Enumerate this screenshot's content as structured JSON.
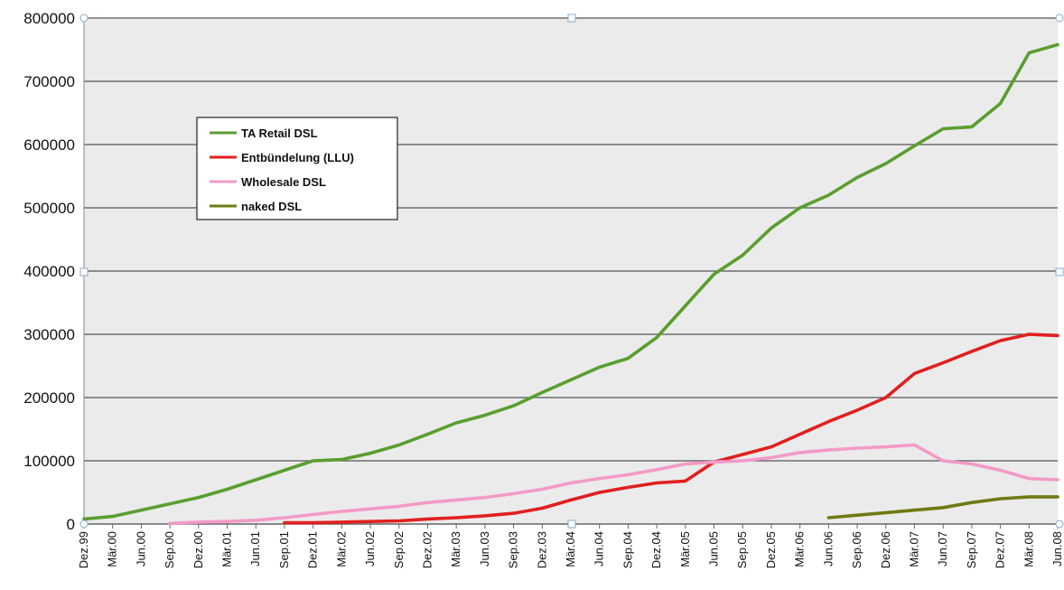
{
  "chart_data": {
    "type": "line",
    "title": "",
    "xlabel": "",
    "ylabel": "",
    "ylim": [
      0,
      800000
    ],
    "yticks": [
      0,
      100000,
      200000,
      300000,
      400000,
      500000,
      600000,
      700000,
      800000
    ],
    "grid": true,
    "legend_position": "top-left",
    "categories": [
      "Dez.99",
      "Mär.00",
      "Jun.00",
      "Sep.00",
      "Dez.00",
      "Mär.01",
      "Jun.01",
      "Sep.01",
      "Dez.01",
      "Mär.02",
      "Jun.02",
      "Sep.02",
      "Dez.02",
      "Mär.03",
      "Jun.03",
      "Sep.03",
      "Dez.03",
      "Mär.04",
      "Jun.04",
      "Sep.04",
      "Dez.04",
      "Mär.05",
      "Jun.05",
      "Sep.05",
      "Dez.05",
      "Mär.06",
      "Jun.06",
      "Sep.06",
      "Dez.06",
      "Mär.07",
      "Jun.07",
      "Sep.07",
      "Dez.07",
      "Mär.08",
      "Jun.08"
    ],
    "series": [
      {
        "name": "TA Retail DSL",
        "color": "#5a9e2f",
        "values": [
          8000,
          12000,
          22000,
          32000,
          42000,
          55000,
          70000,
          85000,
          100000,
          102000,
          112000,
          125000,
          142000,
          160000,
          172000,
          187000,
          208000,
          228000,
          248000,
          262000,
          295000,
          345000,
          395000,
          425000,
          468000,
          500000,
          520000,
          548000,
          570000,
          598000,
          625000,
          628000,
          665000,
          745000,
          758000
        ]
      },
      {
        "name": "Entbündelung (LLU)",
        "color": "#e0201f",
        "values": [
          null,
          null,
          null,
          null,
          null,
          null,
          null,
          2000,
          2000,
          3000,
          4000,
          5000,
          8000,
          10000,
          13000,
          17000,
          25000,
          38000,
          50000,
          58000,
          65000,
          68000,
          98000,
          110000,
          122000,
          142000,
          162000,
          180000,
          200000,
          238000,
          255000,
          273000,
          290000,
          300000,
          298000
        ]
      },
      {
        "name": "Wholesale DSL",
        "color": "#f39ac8",
        "values": [
          null,
          null,
          null,
          1000,
          3000,
          4000,
          6000,
          10000,
          15000,
          20000,
          24000,
          28000,
          34000,
          38000,
          42000,
          48000,
          55000,
          65000,
          72000,
          78000,
          86000,
          95000,
          98000,
          100000,
          105000,
          113000,
          117000,
          120000,
          122000,
          125000,
          100000,
          95000,
          85000,
          72000,
          70000
        ]
      },
      {
        "name": "naked DSL",
        "color": "#707a12",
        "values": [
          null,
          null,
          null,
          null,
          null,
          null,
          null,
          null,
          null,
          null,
          null,
          null,
          null,
          null,
          null,
          null,
          null,
          null,
          null,
          null,
          null,
          null,
          null,
          null,
          null,
          null,
          10000,
          14000,
          18000,
          22000,
          26000,
          34000,
          40000,
          43000,
          43000
        ]
      }
    ]
  }
}
